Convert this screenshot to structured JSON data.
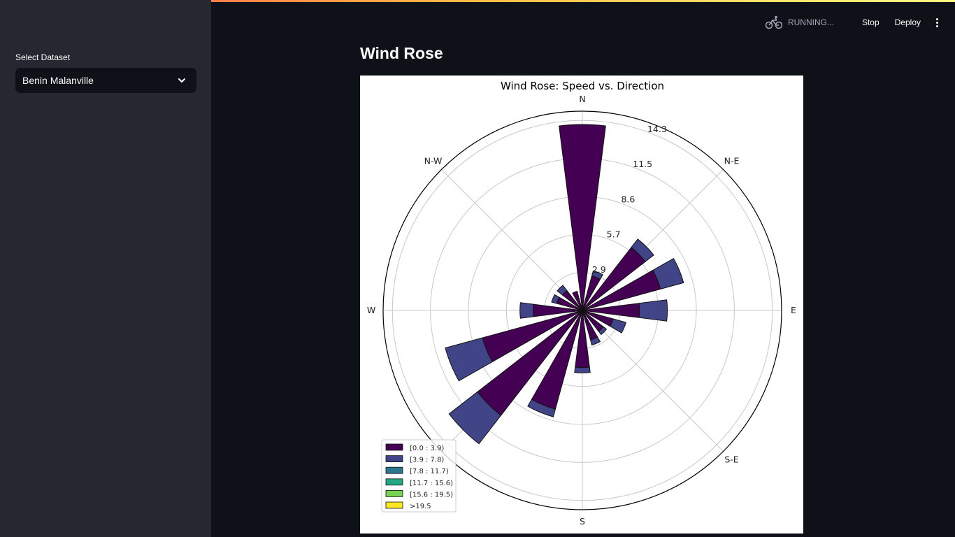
{
  "sidebar": {
    "select_label": "Select Dataset",
    "select_value": "Benin Malanville"
  },
  "header": {
    "status": "RUNNING...",
    "stop_label": "Stop",
    "deploy_label": "Deploy",
    "status_icon": "running-cyclist-icon",
    "menu_icon": "kebab-menu-icon"
  },
  "main": {
    "title": "Wind Rose"
  },
  "chart_data": {
    "type": "windrose",
    "title": "Wind Rose: Speed vs. Direction",
    "directions": [
      "N",
      "N-E",
      "E",
      "S-E",
      "S",
      "W",
      "N-W"
    ],
    "compass_labels": [
      "N",
      "N-E",
      "E",
      "S-E",
      "S",
      "W",
      "N-W"
    ],
    "radial_ticks": [
      "2.9",
      "5.7",
      "8.6",
      "11.5",
      "14.3"
    ],
    "radial_values": [
      2.86,
      5.72,
      8.58,
      11.44,
      14.3
    ],
    "rmax": 14.3,
    "legend": [
      "[0.0 : 3.9)",
      "[3.9 : 7.8)",
      "[7.8 : 11.7)",
      "[11.7 : 15.6)",
      "[15.6 : 19.5)",
      ">19.5"
    ],
    "legend_placement": "lower-left",
    "colors": [
      "#440154",
      "#414487",
      "#2a788e",
      "#22a884",
      "#7ad151",
      "#fde725"
    ],
    "grid": true,
    "bins": [
      {
        "dir": 0.0,
        "values": [
          14.0,
          0.0
        ]
      },
      {
        "dir": 22.5,
        "values": [
          2.7,
          0.4
        ]
      },
      {
        "dir": 45.0,
        "values": [
          6.0,
          0.8
        ]
      },
      {
        "dir": 67.5,
        "values": [
          6.1,
          1.8
        ]
      },
      {
        "dir": 90.0,
        "values": [
          4.3,
          2.1
        ]
      },
      {
        "dir": 112.5,
        "values": [
          2.4,
          1.0
        ]
      },
      {
        "dir": 135.0,
        "values": [
          2.0,
          0.3
        ]
      },
      {
        "dir": 157.5,
        "values": [
          2.3,
          0.4
        ]
      },
      {
        "dir": 180.0,
        "values": [
          4.3,
          0.4
        ]
      },
      {
        "dir": 202.5,
        "values": [
          7.7,
          0.6
        ]
      },
      {
        "dir": 225.0,
        "values": [
          10.0,
          2.7
        ]
      },
      {
        "dir": 247.5,
        "values": [
          7.8,
          2.9
        ]
      },
      {
        "dir": 270.0,
        "values": [
          3.7,
          1.0
        ]
      },
      {
        "dir": 292.5,
        "values": [
          2.0,
          0.4
        ]
      },
      {
        "dir": 315.0,
        "values": [
          1.9,
          0.5
        ]
      },
      {
        "dir": 337.5,
        "values": [
          1.5,
          0.0
        ]
      }
    ]
  }
}
